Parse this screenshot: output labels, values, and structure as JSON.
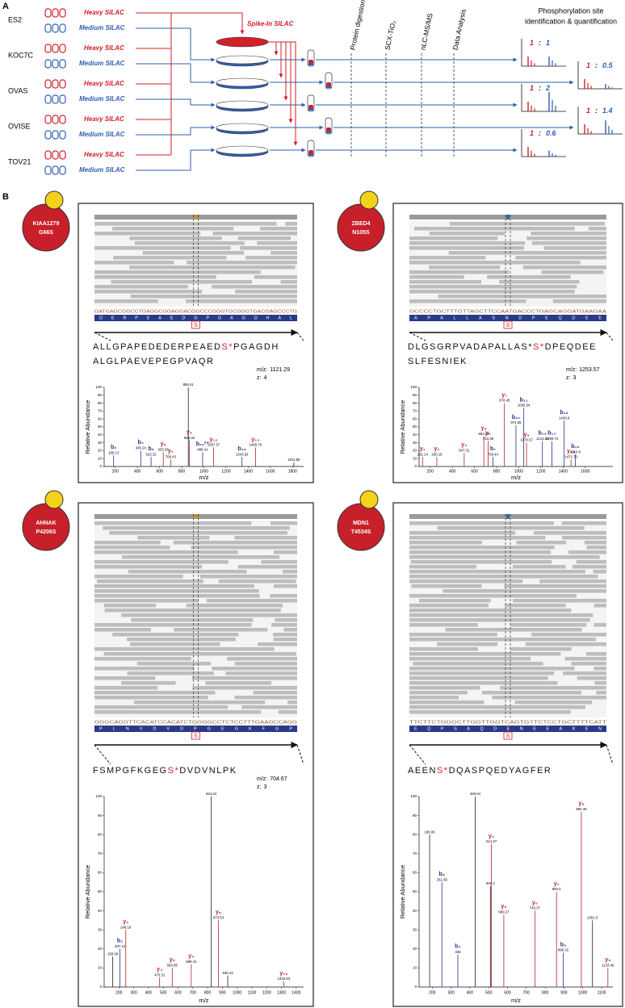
{
  "panel_a": {
    "label": "A",
    "cell_lines": [
      {
        "name": "ES2",
        "heavy": "Heavy SILAC",
        "medium": "Medium SILAC"
      },
      {
        "name": "KOC7C",
        "heavy": "Heavy SILAC",
        "medium": "Medium SILAC"
      },
      {
        "name": "OVAS",
        "heavy": "Heavy SILAC",
        "medium": "Medium SILAC"
      },
      {
        "name": "OVISE",
        "heavy": "Heavy SILAC",
        "medium": "Medium SILAC"
      },
      {
        "name": "TOV21",
        "heavy": "Heavy SILAC",
        "medium": "Medium SILAC"
      }
    ],
    "spike_in": "Spike-In SILAC",
    "steps": [
      "Protein digestion",
      "SCX-TiO₂",
      "nLC-MS/MS",
      "Data Analysis"
    ],
    "result_title": [
      "Phosphorylation site",
      "identification & quantification"
    ],
    "ratio_separator": ":",
    "ratios": [
      {
        "heavy": 1,
        "medium": 1
      },
      {
        "heavy": 1,
        "medium": 0.5
      },
      {
        "heavy": 1,
        "medium": 2
      },
      {
        "heavy": 1,
        "medium": 1.4
      },
      {
        "heavy": 1,
        "medium": 0.6
      }
    ]
  },
  "panel_b": {
    "label": "B",
    "y_label": "Relative Abundance",
    "x_label": "m/z",
    "mz_prefix": "m/z:",
    "z_prefix": "z:",
    "panels": [
      {
        "gene": "KIAA1279",
        "mutation": "G66S",
        "dna": "GATGAGCGGCCTGAGGCGGAGGACGGCCCGGGTGCGGGTGACGAGCCCTG",
        "protein": "DERPEAEDGPGAGDHAL",
        "alt": "S",
        "sequence": [
          [
            {
              "t": "ALLGPAPEDEDERPEAED"
            },
            {
              "t": "S*",
              "site": true
            },
            {
              "t": "PGAGDH"
            }
          ],
          [
            {
              "t": "ALGLPAEVEPEGPVAQR"
            }
          ]
        ],
        "mz": 1121.29,
        "z": 4,
        "xlim": [
          100,
          1900
        ],
        "xticks": [
          200,
          400,
          600,
          800,
          1000,
          1200,
          1400,
          1600,
          1800
        ],
        "ylim": [
          0,
          100
        ],
        "yticks": [
          0,
          10,
          20,
          30,
          40,
          50,
          60,
          70,
          80,
          90,
          100
        ],
        "peaks": [
          {
            "mz": 185.13,
            "intensity": 14,
            "ion": "b₂"
          },
          {
            "mz": 430.24,
            "intensity": 20,
            "ion": "b₄"
          },
          {
            "mz": 523.32,
            "intensity": 12,
            "ion": "b₅"
          },
          {
            "mz": 633.38,
            "intensity": 18,
            "ion": "y₆"
          },
          {
            "mz": 700.43,
            "intensity": 9,
            "ion": "y₇"
          },
          {
            "mz": 859.41,
            "intensity": 100
          },
          {
            "mz": 869.32,
            "intensity": 33,
            "ion": "y₉"
          },
          {
            "mz": 988.41,
            "intensity": 18,
            "ion": "b₂₁²⁺"
          },
          {
            "mz": 1087.57,
            "intensity": 24,
            "ion": "y₁₀"
          },
          {
            "mz": 1343.83,
            "intensity": 12,
            "ion": "b₁₃"
          },
          {
            "mz": 1465.76,
            "intensity": 24,
            "ion": "y₁₄"
          },
          {
            "mz": 1811.85,
            "intensity": 5
          }
        ]
      },
      {
        "gene": "ZBED4",
        "mutation": "N105S",
        "dna": "GCCCCTGCTTTGTTAGCTTCCAATGACCCTGAGCAGGATGAAGAA",
        "protein": "APALLASNDPEQDEE",
        "alt": "S",
        "sequence": [
          [
            {
              "t": "DLGSGRPVADAPALLAS*"
            },
            {
              "t": "S*",
              "site": true
            },
            {
              "t": "DPEQDEE"
            }
          ],
          [
            {
              "t": "SLFESNIEK"
            }
          ]
        ],
        "mz": 1253.57,
        "z": 3,
        "xlim": [
          100,
          1850
        ],
        "xticks": [
          200,
          400,
          600,
          800,
          1000,
          1200,
          1400,
          1600
        ],
        "ylim": [
          0,
          100
        ],
        "yticks": [
          0,
          10,
          20,
          30,
          40,
          50,
          60,
          70,
          80,
          90,
          100
        ],
        "peaks": [
          {
            "mz": 131.14,
            "intensity": 12,
            "ion": "y₁"
          },
          {
            "mz": 260.18,
            "intensity": 12,
            "ion": "y₂"
          },
          {
            "mz": 507.31,
            "intensity": 17,
            "ion": "y₄"
          },
          {
            "mz": 684.34,
            "intensity": 38,
            "ion": "y₅"
          },
          {
            "mz": 723.38,
            "intensity": 32,
            "ion": "y₆"
          },
          {
            "mz": 766.44,
            "intensity": 12,
            "ion": "b₇"
          },
          {
            "mz": 870.45,
            "intensity": 80,
            "ion": "y₇"
          },
          {
            "mz": 974.55,
            "intensity": 52,
            "ion": "b₁₀"
          },
          {
            "mz": 1045.54,
            "intensity": 74,
            "ion": "b₁₁"
          },
          {
            "mz": 1070.57,
            "intensity": 30,
            "ion": "y₉"
          },
          {
            "mz": 1213.63,
            "intensity": 32,
            "ion": "b₁₃"
          },
          {
            "mz": 1299.73,
            "intensity": 32,
            "ion": "b₁₄"
          },
          {
            "mz": 1409.8,
            "intensity": 58,
            "ion": "b₁₅"
          },
          {
            "mz": 1471.73,
            "intensity": 9,
            "ion": "y₁₃"
          },
          {
            "mz": 1510.8,
            "intensity": 15,
            "ion": "b₁₆"
          }
        ]
      },
      {
        "gene": "AHNAK",
        "mutation": "P4206S",
        "dna": "GGGCAGGTTCACATCCACATCTGGGGCCTCTCCTTTGAAGCCAGG",
        "protein": "PLNVDVDPGEGKFGP",
        "alt": "S",
        "sequence": [
          [
            {
              "t": "FSMPGFKGEG"
            },
            {
              "t": "S*",
              "site": true
            },
            {
              "t": "DVDVNLPK"
            }
          ]
        ],
        "mz": 704.67,
        "z": 3,
        "xlim": [
          100,
          1450
        ],
        "xticks": [
          200,
          300,
          400,
          500,
          600,
          700,
          800,
          900,
          1000,
          1100,
          1200,
          1300,
          1400
        ],
        "ylim": [
          0,
          100
        ],
        "yticks": [
          0,
          10,
          20,
          30,
          40,
          50,
          60,
          70,
          80,
          90,
          100
        ],
        "peaks": [
          {
            "mz": 158.09,
            "intensity": 16
          },
          {
            "mz": 207.12,
            "intensity": 20,
            "ion": "b₂"
          },
          {
            "mz": 246.18,
            "intensity": 30,
            "ion": "y₂"
          },
          {
            "mz": 475.31,
            "intensity": 5,
            "ion": "y₄"
          },
          {
            "mz": 560.85,
            "intensity": 10,
            "ion": "y₅"
          },
          {
            "mz": 689.41,
            "intensity": 12,
            "ion": "y₆"
          },
          {
            "mz": 824.34,
            "intensity": 100
          },
          {
            "mz": 873.53,
            "intensity": 35,
            "ion": "y₈"
          },
          {
            "mz": 936.44,
            "intensity": 6
          },
          {
            "mz": 1315.53,
            "intensity": 3,
            "ion": "y₁₃"
          }
        ]
      },
      {
        "gene": "MDN1",
        "mutation": "T4534S",
        "dna": "TTCTTCTGGGCTTGGTTGGTCAGTGTTCTCCTGCTTTTCATT",
        "protein": "EQPSAQDENEEAKEN",
        "alt": "S",
        "sequence": [
          [
            {
              "t": "AEEN"
            },
            {
              "t": "S*",
              "site": true
            },
            {
              "t": "DQASPQEDYAGFER"
            }
          ]
        ],
        "xlim": [
          130,
          1160
        ],
        "xticks": [
          200,
          300,
          400,
          500,
          600,
          700,
          800,
          900,
          1000,
          1100
        ],
        "ylim": [
          0,
          100
        ],
        "yticks": [
          0,
          10,
          20,
          30,
          40,
          50,
          60,
          70,
          80,
          90,
          100
        ],
        "peaks": [
          {
            "mz": 186.06,
            "intensity": 80
          },
          {
            "mz": 251.09,
            "intensity": 55,
            "ion": "b₃"
          },
          {
            "mz": 336.0,
            "intensity": 17,
            "ion": "b₄"
          },
          {
            "mz": 428.04,
            "intensity": 100
          },
          {
            "mz": 509.2,
            "intensity": 53
          },
          {
            "mz": 514.27,
            "intensity": 75,
            "ion": "y₄"
          },
          {
            "mz": 580.27,
            "intensity": 38,
            "ion": "y₅"
          },
          {
            "mz": 745.37,
            "intensity": 40,
            "ion": "y₆"
          },
          {
            "mz": 860.4,
            "intensity": 50,
            "ion": "y₇"
          },
          {
            "mz": 896.32,
            "intensity": 18,
            "ion": "b₈"
          },
          {
            "mz": 992.46,
            "intensity": 92,
            "ion": "y₈"
          },
          {
            "mz": 1051.5,
            "intensity": 35
          },
          {
            "mz": 1133.46,
            "intensity": 10,
            "ion": "y₉"
          }
        ]
      }
    ]
  }
}
